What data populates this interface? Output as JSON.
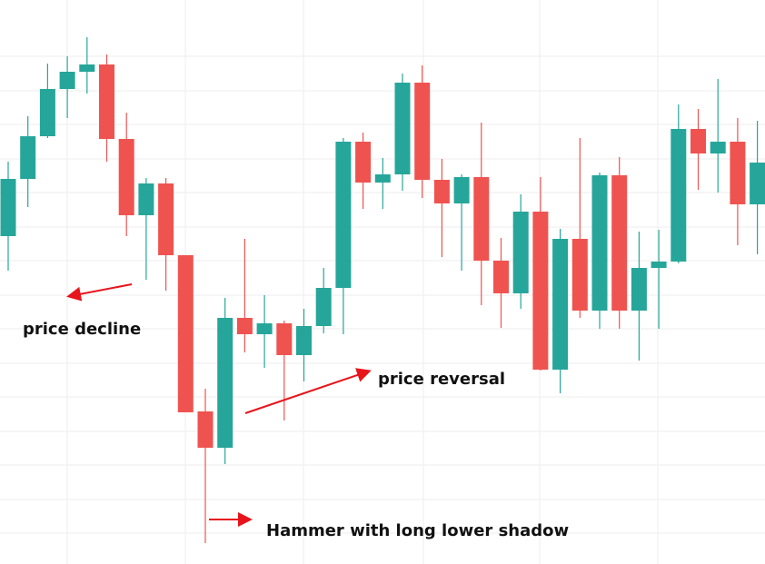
{
  "chart_data": {
    "type": "candlestick",
    "categories": [
      null,
      null,
      null,
      null,
      null,
      null,
      null,
      null,
      null,
      null,
      null,
      null,
      null,
      null,
      null,
      null,
      null,
      null,
      null,
      null,
      null,
      null,
      null,
      null,
      null,
      null,
      null,
      null,
      null,
      null,
      null,
      null,
      null,
      null,
      null,
      null,
      null,
      null,
      null
    ],
    "open": [
      361,
      424,
      471,
      523,
      542,
      550,
      468,
      384,
      419,
      340,
      168,
      128,
      271,
      253,
      265,
      230,
      262,
      304,
      465,
      420,
      429,
      530,
      423,
      397,
      426,
      334,
      298,
      388,
      214,
      358,
      279,
      428,
      279,
      326,
      333,
      479,
      452,
      465,
      396
    ],
    "high": [
      443,
      493,
      551,
      559,
      580,
      561,
      497,
      425,
      425,
      340,
      193,
      293,
      358,
      296,
      268,
      281,
      326,
      469,
      475,
      447,
      540,
      549,
      446,
      429,
      486,
      359,
      407,
      426,
      369,
      469,
      431,
      448,
      366,
      368,
      506,
      501,
      534,
      491,
      488
    ],
    "low": [
      323,
      393,
      469,
      491,
      518,
      443,
      361,
      313,
      301,
      167,
      23,
      110,
      233,
      216,
      158,
      201,
      254,
      253,
      391,
      391,
      411,
      403,
      338,
      323,
      285,
      260,
      281,
      213,
      188,
      271,
      259,
      259,
      224,
      259,
      331,
      412,
      409,
      351,
      341
    ],
    "close": [
      424,
      471,
      523,
      542,
      550,
      468,
      384,
      419,
      340,
      167,
      128,
      271,
      253,
      265,
      230,
      262,
      304,
      465,
      420,
      429,
      530,
      423,
      397,
      426,
      334,
      298,
      388,
      214,
      358,
      279,
      428,
      279,
      326,
      333,
      479,
      452,
      465,
      396,
      442
    ],
    "up_color": "#26a69a",
    "down_color": "#ef5350",
    "ylim": [
      0,
      621
    ],
    "grid": true,
    "annotations": [
      "price decline",
      "price reversal",
      "Hammer with long lower shadow"
    ]
  }
}
